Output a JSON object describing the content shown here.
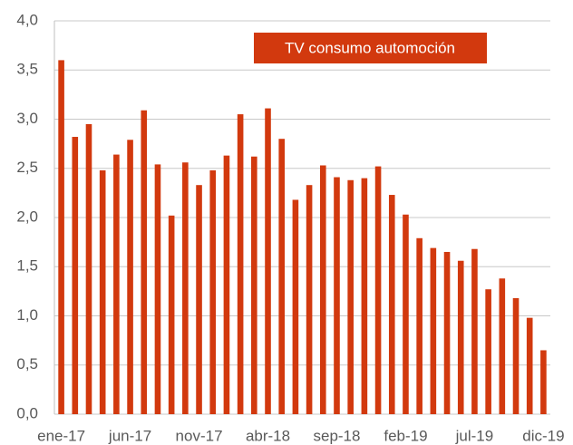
{
  "chart_data": {
    "type": "bar",
    "categories": [
      "ene-17",
      null,
      null,
      null,
      null,
      "jun-17",
      null,
      null,
      null,
      null,
      "nov-17",
      null,
      null,
      null,
      null,
      "abr-18",
      null,
      null,
      null,
      null,
      "sep-18",
      null,
      null,
      null,
      null,
      "feb-19",
      null,
      null,
      null,
      null,
      "jul-19",
      null,
      null,
      null,
      null,
      "dic-19"
    ],
    "series": [
      {
        "name": "TV consumo automoción",
        "color": "#d2390e",
        "values": [
          3.6,
          2.82,
          2.95,
          2.48,
          2.64,
          2.79,
          3.09,
          2.54,
          2.02,
          2.56,
          2.33,
          2.48,
          2.63,
          3.05,
          2.62,
          3.11,
          2.8,
          2.18,
          2.33,
          2.53,
          2.41,
          2.38,
          2.4,
          2.52,
          2.23,
          2.03,
          1.79,
          1.69,
          1.65,
          1.56,
          1.68,
          1.27,
          1.38,
          1.18,
          0.98,
          0.65
        ]
      }
    ],
    "ylim": [
      0,
      4
    ],
    "yticks": [
      {
        "value": 0,
        "label": "0,0"
      },
      {
        "value": 0.5,
        "label": "0,5"
      },
      {
        "value": 1,
        "label": "1,0"
      },
      {
        "value": 1.5,
        "label": "1,5"
      },
      {
        "value": 2,
        "label": "2,0"
      },
      {
        "value": 2.5,
        "label": "2,5"
      },
      {
        "value": 3,
        "label": "3,0"
      },
      {
        "value": 3.5,
        "label": "3,5"
      },
      {
        "value": 4,
        "label": "4,0"
      }
    ],
    "grid": true
  }
}
